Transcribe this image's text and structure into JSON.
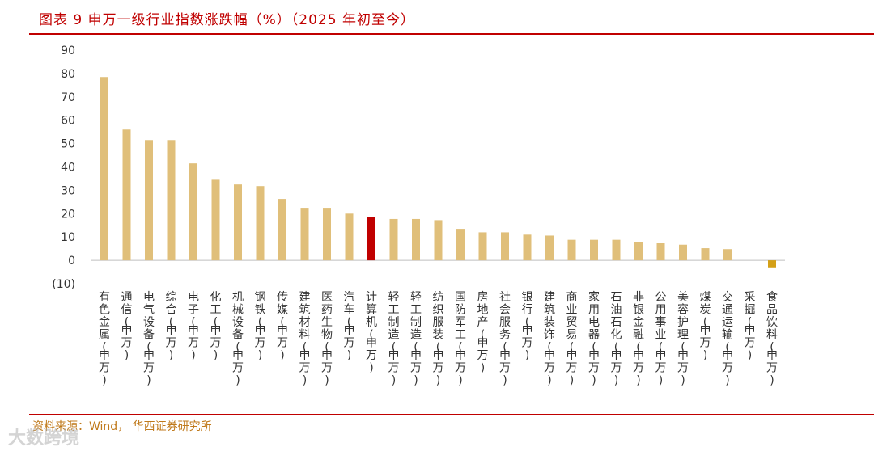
{
  "title": "图表 9 申万一级行业指数涨跌幅（%）（2025 年初至今）",
  "source": "资料来源：Wind， 华西证券研究所",
  "watermark": "大数跨境",
  "chart_data": {
    "type": "bar",
    "title": "图表 9 申万一级行业指数涨跌幅（%）（2025 年初至今）",
    "xlabel": "",
    "ylabel": "",
    "ylim": [
      -10,
      90
    ],
    "yticks": [
      -10,
      0,
      10,
      20,
      30,
      40,
      50,
      60,
      70,
      80,
      90
    ],
    "ytick_labels": [
      "(10)",
      "0",
      "10",
      "20",
      "30",
      "40",
      "50",
      "60",
      "70",
      "80",
      "90"
    ],
    "grid": false,
    "categories": [
      "有色金属(申万)",
      "通信(申万)",
      "电气设备(申万)",
      "综合(申万)",
      "电子(申万)",
      "化工(申万)",
      "机械设备(申万)",
      "钢铁(申万)",
      "传媒(申万)",
      "建筑材料(申万)",
      "医药生物(申万)",
      "汽车(申万)",
      "计算机(申万)",
      "轻工制造(申万)",
      "轻工制造(申万)",
      "纺织服装(申万)",
      "国防军工(申万)",
      "房地产(申万)",
      "社会服务(申万)",
      "银行(申万)",
      "建筑装饰(申万)",
      "商业贸易(申万)",
      "家用电器(申万)",
      "石油石化(申万)",
      "非银金融(申万)",
      "公用事业(申万)",
      "美容护理(申万)",
      "煤炭(申万)",
      "交通运输(申万)",
      "采掘(申万)",
      "食品饮料(申万)"
    ],
    "values": [
      78.5,
      56,
      51.5,
      51.5,
      41.5,
      34.5,
      32.5,
      31.8,
      26.3,
      22.5,
      22.5,
      20,
      18.5,
      17.7,
      17.7,
      17.2,
      13.5,
      12,
      12,
      11,
      10.6,
      8.8,
      8.8,
      8.8,
      7.7,
      7.3,
      6.7,
      5.2,
      4.8,
      0,
      -3
    ],
    "colors": {
      "default": "#e0bf7a",
      "highlight": "#c00000",
      "negative": "#d4a017"
    },
    "highlight_index": 12
  }
}
